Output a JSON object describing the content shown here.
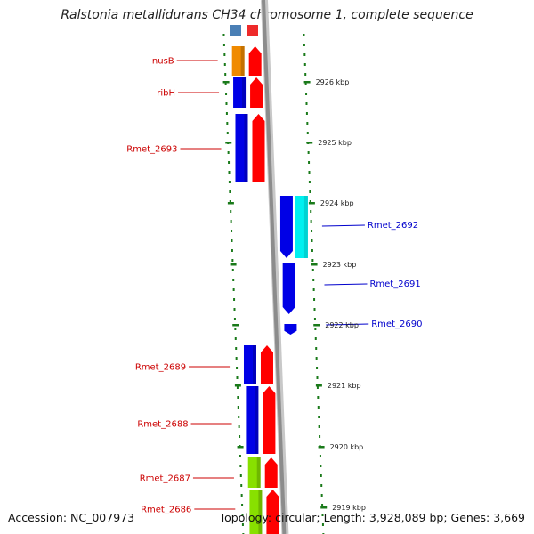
{
  "title": "Ralstonia metallidurans CH34 chromosome 1, complete sequence",
  "footer": {
    "accession": "Accession: NC_007973",
    "summary": "Topology: circular; Length: 3,928,089 bp; Genes: 3,669"
  },
  "colors": {
    "forward_gene": "#0000e6",
    "forward_cds": "#ff0000",
    "reverse_gene": "#0000e6",
    "reverse_cds": "#00f0f0",
    "orange_gene": "#f08a00",
    "green_gene": "#88e000",
    "forward_label": "#cc0000",
    "reverse_label": "#0000cc",
    "backbone": "#8c8c8c",
    "tick": "#1a7a1a"
  },
  "scale_ticks": [
    {
      "label": "2926 kbp"
    },
    {
      "label": "2925 kbp"
    },
    {
      "label": "2924 kbp"
    },
    {
      "label": "2923 kbp"
    },
    {
      "label": "2922 kbp"
    },
    {
      "label": "2921 kbp"
    },
    {
      "label": "2920 kbp"
    },
    {
      "label": "2919 kbp"
    }
  ],
  "genes": [
    {
      "name": "nusB",
      "strand": "forward",
      "gene_color": "orange_gene"
    },
    {
      "name": "ribH",
      "strand": "forward",
      "gene_color": "forward_gene"
    },
    {
      "name": "Rmet_2693",
      "strand": "forward",
      "gene_color": "forward_gene"
    },
    {
      "name": "Rmet_2692",
      "strand": "reverse",
      "gene_color": "reverse_gene"
    },
    {
      "name": "Rmet_2691",
      "strand": "reverse",
      "gene_color": "reverse_gene"
    },
    {
      "name": "Rmet_2690",
      "strand": "reverse",
      "gene_color": "reverse_gene"
    },
    {
      "name": "Rmet_2689",
      "strand": "forward",
      "gene_color": "forward_gene"
    },
    {
      "name": "Rmet_2688",
      "strand": "forward",
      "gene_color": "forward_gene"
    },
    {
      "name": "Rmet_2687",
      "strand": "forward",
      "gene_color": "green_gene"
    },
    {
      "name": "Rmet_2686",
      "strand": "forward",
      "gene_color": "green_gene"
    }
  ]
}
